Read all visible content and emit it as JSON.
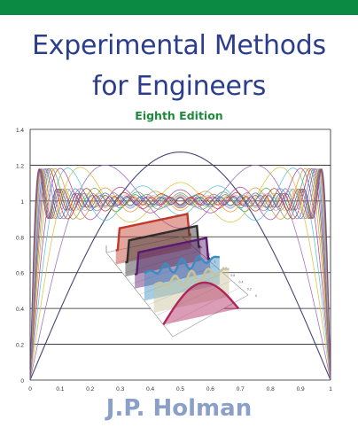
{
  "colors": {
    "band": "#0a8a43",
    "title": "#2b3e8c",
    "edition": "#1f8a3c",
    "author": "#8aa0c8",
    "axis_text": "#333333",
    "grid": "#222222"
  },
  "cover": {
    "title_line_1": "Experimental Methods",
    "title_line_2": "for Engineers",
    "edition": "Eighth Edition",
    "author": "J.P. Holman"
  },
  "chart_data": {
    "type": "line",
    "title": "",
    "xlabel": "",
    "ylabel": "",
    "xlim": [
      0,
      1
    ],
    "ylim": [
      0,
      1.4
    ],
    "x_ticks": [
      "0",
      "0.1",
      "0.2",
      "0.3",
      "0.4",
      "0.5",
      "0.6",
      "0.7",
      "0.8",
      "0.9",
      "1"
    ],
    "y_ticks": [
      "0",
      "0.2",
      "0.4",
      "0.6",
      "0.8",
      "1",
      "1.2",
      "1.4"
    ],
    "grid": "horizontal",
    "series_description": "Fourier partial-sum approximations of a unit square pulse on [0,1], 1 to ~17 odd terms, each series a different colour",
    "harmonic_counts": [
      1,
      2,
      3,
      4,
      5,
      6,
      7,
      8,
      9,
      10,
      11,
      12,
      13,
      14,
      15,
      16,
      17
    ],
    "series_colors": [
      "#3b3b6e",
      "#9a6bc4",
      "#e0c040",
      "#59c4d8",
      "#b04aa0",
      "#e89b3b",
      "#6aa84f",
      "#c0392b",
      "#8e7cc3",
      "#3d85c6",
      "#d5a6bd",
      "#76a5af",
      "#f1c232",
      "#a64d79",
      "#45818e",
      "#cc4125",
      "#674ea7"
    ],
    "inset": {
      "type": "3d-waterfall",
      "depth_tick_labels": [
        "1.6",
        "1.4",
        "1.2",
        "1",
        "0.8",
        "0.6",
        "0.4",
        "0.2",
        "0"
      ],
      "ribbons": [
        {
          "color": "#c0392b",
          "shape": "flat"
        },
        {
          "color": "#2d2d2d",
          "shape": "flat"
        },
        {
          "color": "#5a1a6e",
          "shape": "flat"
        },
        {
          "color": "#3a8dc4",
          "shape": "wavy"
        },
        {
          "color": "#c7c39a",
          "shape": "wavy"
        },
        {
          "color": "#b0245a",
          "shape": "arch"
        }
      ]
    }
  }
}
